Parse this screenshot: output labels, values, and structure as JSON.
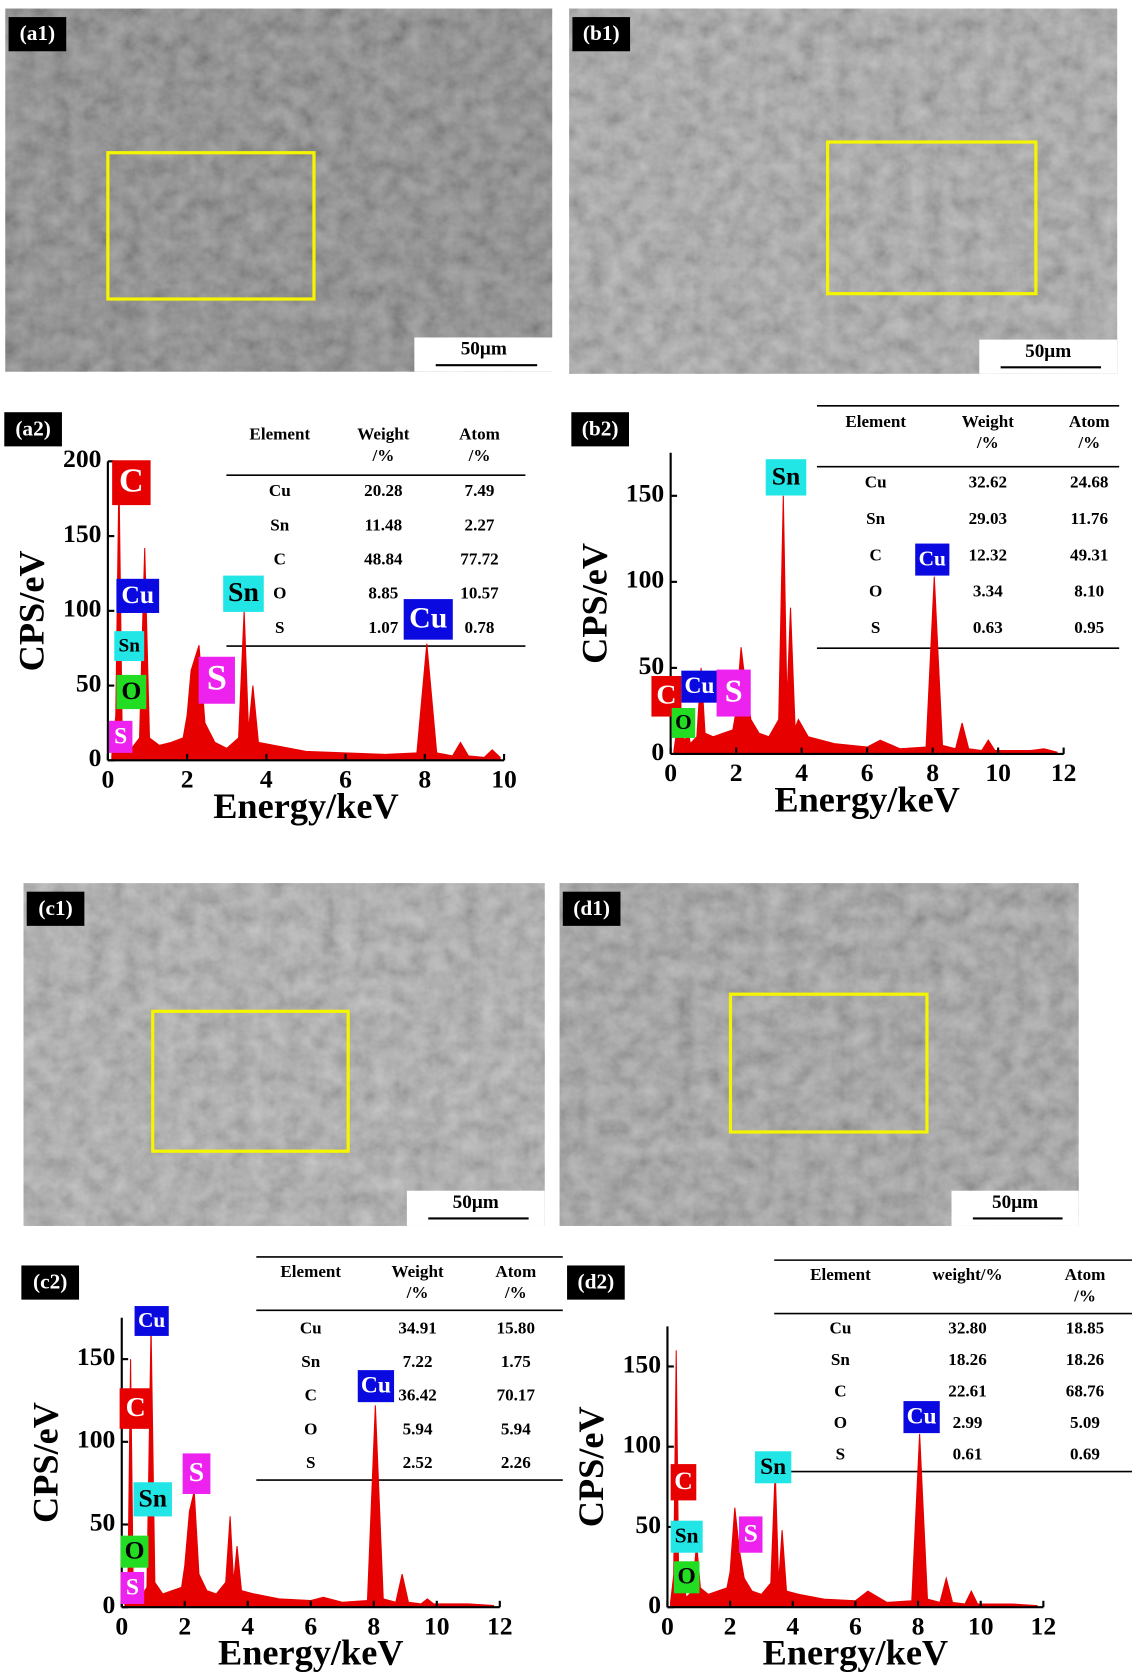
{
  "images": [
    {
      "label": "(a1)",
      "scale_bar": "50μm"
    },
    {
      "label": "(b1)",
      "scale_bar": "50μm"
    },
    {
      "label": "(c1)",
      "scale_bar": "50μm"
    },
    {
      "label": "(d1)",
      "scale_bar": "50μm"
    }
  ],
  "chart_data": [
    {
      "type": "area",
      "label": "(a2)",
      "xlabel": "Energy/keV",
      "ylabel": "CPS/eV",
      "color": "#e60000",
      "xlim": [
        0,
        10
      ],
      "ylim": [
        0,
        200
      ],
      "xticks": [
        0,
        2,
        4,
        6,
        8,
        10
      ],
      "yticks": [
        0,
        50,
        100,
        150,
        200
      ],
      "x": [
        0.1,
        0.2,
        0.28,
        0.36,
        0.45,
        0.52,
        0.6,
        0.8,
        0.93,
        1.05,
        1.3,
        1.6,
        1.9,
        2.0,
        2.1,
        2.3,
        2.45,
        2.7,
        3.0,
        3.3,
        3.44,
        3.55,
        3.66,
        3.8,
        4.2,
        5,
        6,
        7,
        7.8,
        8.05,
        8.3,
        8.7,
        8.9,
        9.1,
        9.5,
        9.7,
        9.9
      ],
      "values": [
        3,
        30,
        190,
        20,
        10,
        25,
        8,
        15,
        142,
        15,
        10,
        12,
        15,
        30,
        60,
        77,
        25,
        12,
        8,
        15,
        100,
        20,
        50,
        12,
        10,
        6,
        5,
        4,
        5,
        78,
        5,
        3,
        12,
        3,
        2,
        7,
        2
      ],
      "annotations": [
        {
          "text": "C",
          "color": "#e60000"
        },
        {
          "text": "Cu",
          "color": "#0a0ae0"
        },
        {
          "text": "Sn",
          "color": "#22e6e6"
        },
        {
          "text": "O",
          "color": "#22dd22"
        },
        {
          "text": "S",
          "color": "#ee22ee"
        },
        {
          "text": "S",
          "color": "#ee22ee"
        },
        {
          "text": "Sn",
          "color": "#22e6e6"
        },
        {
          "text": "Cu",
          "color": "#0a0ae0"
        }
      ],
      "table": {
        "header": [
          [
            "Element"
          ],
          [
            "Weight",
            "/%"
          ],
          [
            "Atom",
            "/%"
          ]
        ],
        "rows": [
          [
            "Cu",
            "20.28",
            "7.49"
          ],
          [
            "Sn",
            "11.48",
            "2.27"
          ],
          [
            "C",
            "48.84",
            "77.72"
          ],
          [
            "O",
            "8.85",
            "10.57"
          ],
          [
            "S",
            "1.07",
            "0.78"
          ]
        ]
      }
    },
    {
      "type": "area",
      "label": "(b2)",
      "xlabel": "Energy/keV",
      "ylabel": "CPS/eV",
      "color": "#e60000",
      "xlim": [
        0,
        12
      ],
      "ylim": [
        0,
        175
      ],
      "xticks": [
        0,
        2,
        4,
        6,
        8,
        10,
        12
      ],
      "yticks": [
        0,
        50,
        100,
        150
      ],
      "x": [
        0.1,
        0.2,
        0.28,
        0.36,
        0.45,
        0.52,
        0.6,
        0.8,
        0.93,
        1.05,
        1.3,
        1.6,
        1.9,
        2.0,
        2.15,
        2.3,
        2.45,
        2.7,
        3.0,
        3.3,
        3.44,
        3.55,
        3.66,
        3.8,
        3.9,
        4.2,
        5,
        6,
        6.4,
        7,
        7.8,
        8.05,
        8.3,
        8.7,
        8.9,
        9.1,
        9.5,
        9.7,
        9.9,
        11,
        11.4,
        11.8
      ],
      "values": [
        2,
        15,
        40,
        10,
        8,
        15,
        6,
        10,
        50,
        12,
        10,
        12,
        14,
        25,
        62,
        38,
        20,
        12,
        10,
        20,
        150,
        30,
        85,
        15,
        20,
        10,
        6,
        4,
        8,
        3,
        4,
        103,
        5,
        3,
        18,
        3,
        2,
        8,
        2,
        2,
        3,
        1
      ],
      "annotations": [
        {
          "text": "C",
          "color": "#e60000"
        },
        {
          "text": "Cu",
          "color": "#0a0ae0"
        },
        {
          "text": "O",
          "color": "#22dd22"
        },
        {
          "text": "S",
          "color": "#ee22ee"
        },
        {
          "text": "Sn",
          "color": "#22e6e6"
        },
        {
          "text": "Cu",
          "color": "#0a0ae0"
        }
      ],
      "table": {
        "header": [
          [
            "Element"
          ],
          [
            "Weight",
            "/%"
          ],
          [
            "Atom",
            "/%"
          ]
        ],
        "rows": [
          [
            "Cu",
            "32.62",
            "24.68"
          ],
          [
            "Sn",
            "29.03",
            "11.76"
          ],
          [
            "C",
            "12.32",
            "49.31"
          ],
          [
            "O",
            "3.34",
            "8.10"
          ],
          [
            "S",
            "0.63",
            "0.95"
          ]
        ]
      }
    },
    {
      "type": "area",
      "label": "(c2)",
      "xlabel": "Energy/keV",
      "ylabel": "CPS/eV",
      "color": "#e60000",
      "xlim": [
        0,
        12
      ],
      "ylim": [
        0,
        175
      ],
      "xticks": [
        0,
        2,
        4,
        6,
        8,
        10,
        12
      ],
      "yticks": [
        0,
        50,
        100,
        150
      ],
      "x": [
        0.1,
        0.2,
        0.28,
        0.36,
        0.45,
        0.52,
        0.6,
        0.8,
        0.93,
        1.05,
        1.3,
        1.6,
        1.9,
        2.0,
        2.15,
        2.3,
        2.45,
        2.7,
        3.0,
        3.3,
        3.44,
        3.55,
        3.66,
        3.8,
        4.2,
        5,
        6,
        6.4,
        7,
        7.8,
        8.05,
        8.3,
        8.7,
        8.9,
        9.1,
        9.5,
        9.7,
        9.9,
        11,
        11.8
      ],
      "values": [
        3,
        20,
        150,
        15,
        8,
        20,
        6,
        12,
        170,
        15,
        8,
        10,
        12,
        25,
        58,
        70,
        20,
        10,
        8,
        15,
        55,
        15,
        37,
        10,
        8,
        5,
        4,
        6,
        3,
        4,
        122,
        5,
        3,
        20,
        3,
        2,
        5,
        2,
        2,
        1
      ],
      "annotations": [
        {
          "text": "Cu",
          "color": "#0a0ae0"
        },
        {
          "text": "C",
          "color": "#e60000"
        },
        {
          "text": "Sn",
          "color": "#22e6e6"
        },
        {
          "text": "S",
          "color": "#ee22ee"
        },
        {
          "text": "O",
          "color": "#22dd22"
        },
        {
          "text": "S",
          "color": "#ee22ee"
        },
        {
          "text": "Cu",
          "color": "#0a0ae0"
        }
      ],
      "table": {
        "header": [
          [
            "Element"
          ],
          [
            "Weight",
            "/%"
          ],
          [
            "Atom",
            "/%"
          ]
        ],
        "rows": [
          [
            "Cu",
            "34.91",
            "15.80"
          ],
          [
            "Sn",
            "7.22",
            "1.75"
          ],
          [
            "C",
            "36.42",
            "70.17"
          ],
          [
            "O",
            "5.94",
            "5.94"
          ],
          [
            "S",
            "2.52",
            "2.26"
          ]
        ]
      }
    },
    {
      "type": "area",
      "label": "(d2)",
      "xlabel": "Energy/keV",
      "ylabel": "CPS/eV",
      "color": "#e60000",
      "xlim": [
        0,
        12
      ],
      "ylim": [
        0,
        175
      ],
      "xticks": [
        0,
        2,
        4,
        6,
        8,
        10,
        12
      ],
      "yticks": [
        0,
        50,
        100,
        150
      ],
      "x": [
        0.1,
        0.2,
        0.28,
        0.36,
        0.45,
        0.52,
        0.6,
        0.8,
        0.93,
        1.05,
        1.3,
        1.6,
        1.9,
        2.0,
        2.15,
        2.3,
        2.45,
        2.7,
        3.0,
        3.3,
        3.44,
        3.55,
        3.66,
        3.8,
        4.2,
        5,
        6,
        6.4,
        7,
        7.8,
        8.05,
        8.3,
        8.7,
        8.9,
        9.1,
        9.5,
        9.7,
        9.9,
        11,
        11.8
      ],
      "values": [
        3,
        20,
        160,
        12,
        8,
        15,
        6,
        10,
        40,
        12,
        8,
        10,
        12,
        22,
        62,
        35,
        18,
        10,
        8,
        15,
        85,
        15,
        48,
        10,
        8,
        5,
        4,
        10,
        3,
        4,
        108,
        5,
        3,
        18,
        3,
        2,
        10,
        2,
        2,
        1
      ],
      "annotations": [
        {
          "text": "C",
          "color": "#e60000"
        },
        {
          "text": "Sn",
          "color": "#22e6e6"
        },
        {
          "text": "O",
          "color": "#22dd22"
        },
        {
          "text": "S",
          "color": "#ee22ee"
        },
        {
          "text": "Sn",
          "color": "#22e6e6"
        },
        {
          "text": "Cu",
          "color": "#0a0ae0"
        }
      ],
      "table": {
        "header": [
          [
            "Element"
          ],
          [
            "weight/%"
          ],
          [
            "Atom",
            "/%"
          ]
        ],
        "rows": [
          [
            "Cu",
            "32.80",
            "18.85"
          ],
          [
            "Sn",
            "18.26",
            "18.26"
          ],
          [
            "C",
            "22.61",
            "68.76"
          ],
          [
            "O",
            "2.99",
            "5.09"
          ],
          [
            "S",
            "0.61",
            "0.69"
          ]
        ]
      }
    }
  ]
}
